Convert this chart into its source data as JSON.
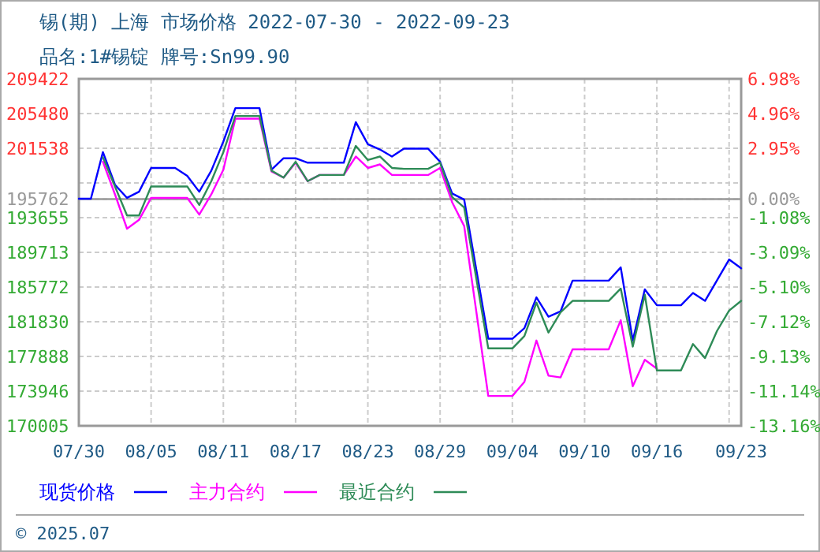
{
  "chart_data": {
    "type": "line",
    "title": "锡(期) 上海 市场价格 2022-07-30 - 2022-09-23",
    "subtitle": "品名:1#锡锭 牌号:Sn99.90",
    "annotations": [
      "© 2025.07"
    ],
    "xlim": [
      "2022-07-30",
      "2022-09-23"
    ],
    "xticks": [
      {
        "value": "2022-07-30",
        "label": "07/30"
      },
      {
        "value": "2022-08-05",
        "label": "08/05"
      },
      {
        "value": "2022-08-11",
        "label": "08/11"
      },
      {
        "value": "2022-08-17",
        "label": "08/17"
      },
      {
        "value": "2022-08-23",
        "label": "08/23"
      },
      {
        "value": "2022-08-29",
        "label": "08/29"
      },
      {
        "value": "2022-09-04",
        "label": "09/04"
      },
      {
        "value": "2022-09-10",
        "label": "09/10"
      },
      {
        "value": "2022-09-16",
        "label": "09/16"
      },
      {
        "value": "2022-09-22",
        "label": null
      },
      {
        "value": "2022-09-23",
        "label": "09/23"
      }
    ],
    "ylim": [
      170005,
      209422
    ],
    "yticks": [
      209422,
      205480,
      201538,
      {
        "value": 197596,
        "label": null
      },
      195762,
      193655,
      189713,
      185772,
      181830,
      177888,
      173946,
      170005
    ],
    "y2lim": [
      -13.16,
      6.98
    ],
    "y2ticks": [
      {
        "value": 6.98,
        "label": "6.98%"
      },
      {
        "value": 4.96,
        "label": "4.96%"
      },
      {
        "value": 2.95,
        "label": "2.95%"
      },
      {
        "value": 0,
        "label": "0.00%"
      },
      {
        "value": -1.08,
        "label": "-1.08%"
      },
      {
        "value": -3.09,
        "label": "-3.09%"
      },
      {
        "value": -5.1,
        "label": "-5.10%"
      },
      {
        "value": -7.12,
        "label": "-7.12%"
      },
      {
        "value": -9.13,
        "label": "-9.13%"
      },
      {
        "value": -11.14,
        "label": "-11.14%"
      },
      {
        "value": -13.16,
        "label": "-13.16%"
      }
    ],
    "ref_lines": [
      {
        "axis": "y",
        "value": 195762,
        "label": null,
        "color": "#999999"
      }
    ],
    "grid": true,
    "legend": "bottom",
    "line_style": "solid",
    "marker": "none",
    "series": [
      {
        "name": "现货价格",
        "color": "#0000ff",
        "x": [
          "2022-07-30",
          "2022-07-31",
          "2022-08-01",
          "2022-08-02",
          "2022-08-03",
          "2022-08-04",
          "2022-08-05",
          "2022-08-07",
          "2022-08-08",
          "2022-08-09",
          "2022-08-10",
          "2022-08-11",
          "2022-08-12",
          "2022-08-14",
          "2022-08-15",
          "2022-08-16",
          "2022-08-17",
          "2022-08-18",
          "2022-08-21",
          "2022-08-22",
          "2022-08-23",
          "2022-08-24",
          "2022-08-25",
          "2022-08-26",
          "2022-08-28",
          "2022-08-29",
          "2022-08-30",
          "2022-08-31",
          "2022-09-02",
          "2022-09-04",
          "2022-09-05",
          "2022-09-06",
          "2022-09-07",
          "2022-09-08",
          "2022-09-09",
          "2022-09-12",
          "2022-09-13",
          "2022-09-14",
          "2022-09-15",
          "2022-09-16",
          "2022-09-18",
          "2022-09-19",
          "2022-09-20",
          "2022-09-22",
          "2022-09-23"
        ],
        "values": [
          195800,
          195800,
          201100,
          197400,
          195900,
          196600,
          199300,
          199300,
          198400,
          196600,
          199000,
          202300,
          206100,
          206100,
          199100,
          200400,
          200400,
          199900,
          199900,
          204500,
          202000,
          201400,
          200600,
          201500,
          201500,
          200000,
          196400,
          195700,
          179900,
          179900,
          181100,
          184600,
          182400,
          183000,
          186500,
          186500,
          188000,
          179700,
          185500,
          183700,
          183700,
          185100,
          184200,
          188900,
          187900
        ]
      },
      {
        "name": "主力合约",
        "color": "#ff00ff",
        "x": [
          "2022-08-01",
          "2022-08-02",
          "2022-08-03",
          "2022-08-04",
          "2022-08-05",
          "2022-08-08",
          "2022-08-09",
          "2022-08-10",
          "2022-08-11",
          "2022-08-12",
          "2022-08-14",
          "2022-08-15",
          "2022-08-16",
          "2022-08-17",
          "2022-08-18",
          "2022-08-19",
          "2022-08-21",
          "2022-08-22",
          "2022-08-23",
          "2022-08-24",
          "2022-08-25",
          "2022-08-28",
          "2022-08-29",
          "2022-08-30",
          "2022-08-31",
          "2022-09-02",
          "2022-09-04",
          "2022-09-05",
          "2022-09-06",
          "2022-09-07",
          "2022-09-08",
          "2022-09-09",
          "2022-09-12",
          "2022-09-13",
          "2022-09-14",
          "2022-09-15",
          "2022-09-16"
        ],
        "values": [
          200000,
          196300,
          192400,
          193400,
          195900,
          195900,
          194000,
          196300,
          199100,
          204900,
          204900,
          198900,
          198200,
          199900,
          197800,
          198500,
          198500,
          200600,
          199300,
          199700,
          198500,
          198500,
          199300,
          195400,
          192700,
          173400,
          173400,
          175000,
          179700,
          175700,
          175500,
          178700,
          178700,
          182000,
          174500,
          177500,
          176500
        ]
      },
      {
        "name": "最近合约",
        "color": "#2e8b57",
        "x": [
          "2022-08-01",
          "2022-08-02",
          "2022-08-03",
          "2022-08-04",
          "2022-08-05",
          "2022-08-08",
          "2022-08-09",
          "2022-08-10",
          "2022-08-11",
          "2022-08-12",
          "2022-08-14",
          "2022-08-15",
          "2022-08-16",
          "2022-08-17",
          "2022-08-18",
          "2022-08-19",
          "2022-08-21",
          "2022-08-22",
          "2022-08-23",
          "2022-08-24",
          "2022-08-25",
          "2022-08-26",
          "2022-08-28",
          "2022-08-29",
          "2022-08-30",
          "2022-08-31",
          "2022-09-02",
          "2022-09-04",
          "2022-09-05",
          "2022-09-06",
          "2022-09-07",
          "2022-09-08",
          "2022-09-09",
          "2022-09-12",
          "2022-09-13",
          "2022-09-14",
          "2022-09-15",
          "2022-09-16",
          "2022-09-18",
          "2022-09-19",
          "2022-09-20",
          "2022-09-21",
          "2022-09-22",
          "2022-09-23"
        ],
        "values": [
          200500,
          197200,
          193900,
          193900,
          197200,
          197200,
          195100,
          197800,
          201100,
          205200,
          205200,
          199000,
          198200,
          200000,
          197800,
          198500,
          198500,
          201800,
          200200,
          200600,
          199300,
          199200,
          199200,
          199900,
          196000,
          194800,
          178800,
          178800,
          180200,
          184000,
          180600,
          182900,
          184200,
          184200,
          185600,
          179000,
          184900,
          176300,
          176300,
          179300,
          177700,
          180800,
          183100,
          184200
        ]
      }
    ]
  }
}
